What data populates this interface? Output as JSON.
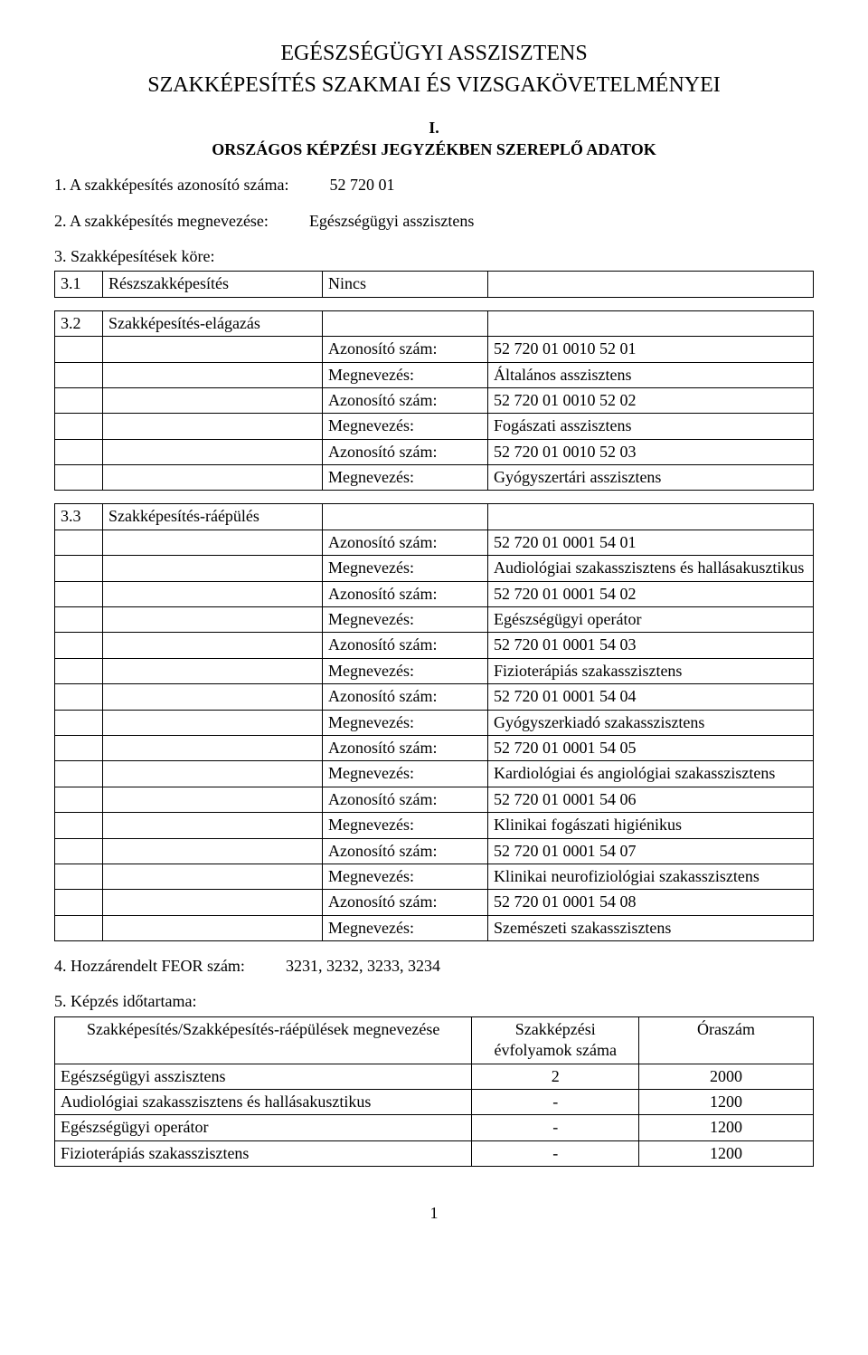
{
  "title1": "EGÉSZSÉGÜGYI ASSZISZTENS",
  "title2": "SZAKKÉPESÍTÉS SZAKMAI ÉS VIZSGAKÖVETELMÉNYEI",
  "section_I": "I.",
  "section_I_sub": "ORSZÁGOS KÉPZÉSI JEGYZÉKBEN SZEREPLŐ ADATOK",
  "item1": {
    "num": "1.",
    "label": "A szakképesítés azonosító száma:",
    "value": "52 720 01"
  },
  "item2": {
    "num": "2.",
    "label": "A szakképesítés megnevezése:",
    "value": "Egészségügyi asszisztens"
  },
  "item3": {
    "num": "3.",
    "label": "Szakképesítések köre:"
  },
  "table31": {
    "num": "3.1",
    "label": "Részszakképesítés",
    "value": "Nincs"
  },
  "labels": {
    "id": "Azonosító szám:",
    "name": "Megnevezés:"
  },
  "table32": {
    "num": "3.2",
    "label": "Szakképesítés-elágazás",
    "rows": [
      {
        "id": "52 720 01 0010 52 01",
        "name": "Általános asszisztens"
      },
      {
        "id": "52 720 01 0010 52 02",
        "name": "Fogászati asszisztens"
      },
      {
        "id": "52 720 01 0010 52 03",
        "name": "Gyógyszertári asszisztens"
      }
    ]
  },
  "table33": {
    "num": "3.3",
    "label": "Szakképesítés-ráépülés",
    "rows": [
      {
        "id": "52 720 01 0001 54 01",
        "name": "Audiológiai szakasszisztens és hallásakusztikus"
      },
      {
        "id": "52 720 01 0001 54 02",
        "name": "Egészségügyi operátor"
      },
      {
        "id": "52 720 01 0001 54 03",
        "name": "Fizioterápiás szakasszisztens"
      },
      {
        "id": "52 720 01 0001 54 04",
        "name": "Gyógyszerkiadó szakasszisztens"
      },
      {
        "id": "52 720 01 0001 54 05",
        "name": "Kardiológiai és angiológiai szakasszisztens"
      },
      {
        "id": "52 720 01 0001 54 06",
        "name": "Klinikai fogászati higiénikus"
      },
      {
        "id": "52 720 01 0001 54 07",
        "name": "Klinikai neurofiziológiai szakasszisztens"
      },
      {
        "id": "52 720 01 0001 54 08",
        "name": "Szemészeti szakasszisztens"
      }
    ]
  },
  "item4": {
    "num": "4.",
    "label": "Hozzárendelt FEOR szám:",
    "value": "3231, 3232, 3233, 3234"
  },
  "item5": {
    "num": "5.",
    "label": "Képzés időtartama:"
  },
  "table5": {
    "headers": [
      "Szakképesítés/Szakképesítés-ráépülések megnevezése",
      "Szakképzési évfolyamok száma",
      "Óraszám"
    ],
    "rows": [
      {
        "name": "Egészségügyi asszisztens",
        "years": "2",
        "hours": "2000"
      },
      {
        "name": "Audiológiai szakasszisztens és hallásakusztikus",
        "years": "-",
        "hours": "1200"
      },
      {
        "name": "Egészségügyi operátor",
        "years": "-",
        "hours": "1200"
      },
      {
        "name": "Fizioterápiás szakasszisztens",
        "years": "-",
        "hours": "1200"
      }
    ]
  },
  "page_number": "1"
}
